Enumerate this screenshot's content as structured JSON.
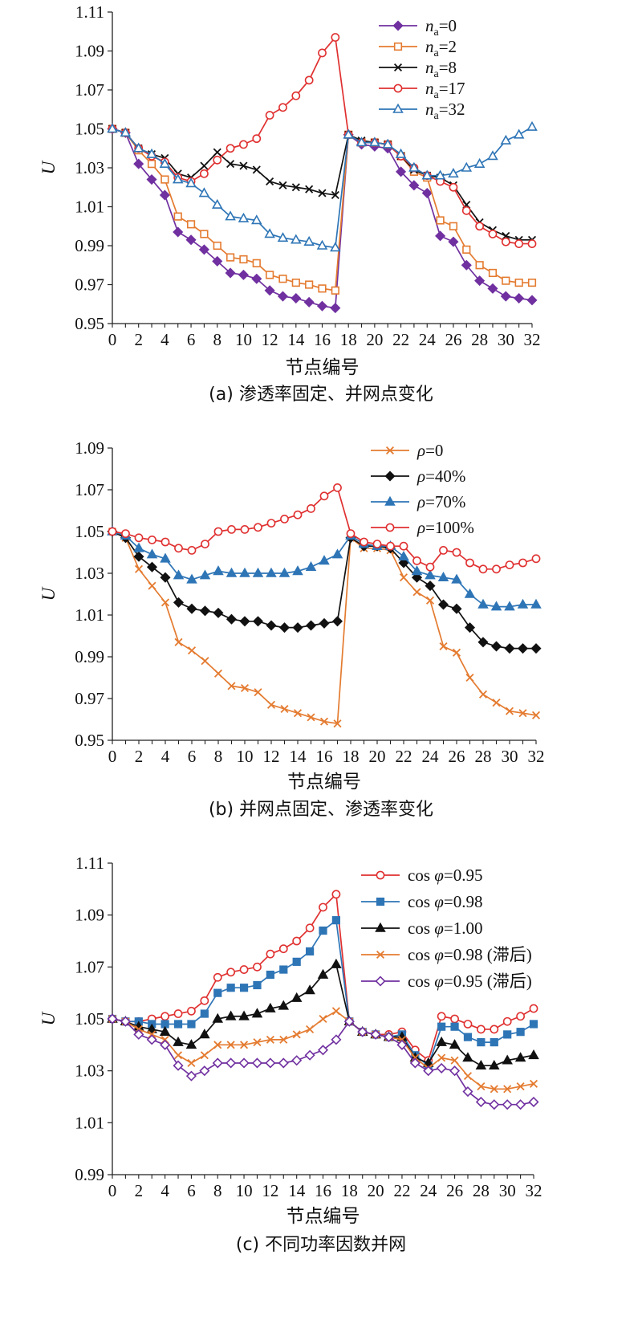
{
  "chart_data": [
    {
      "type": "line",
      "caption": "(a) 渗透率固定、并网点变化",
      "xlabel": "节点编号",
      "ylabel": "U",
      "ylim": [
        0.95,
        1.11
      ],
      "yticks": [
        "0.95",
        "0.97",
        "0.99",
        "1.01",
        "1.03",
        "1.05",
        "1.07",
        "1.09",
        "1.11"
      ],
      "xticks": [
        "0",
        "2",
        "4",
        "6",
        "8",
        "10",
        "12",
        "14",
        "16",
        "18",
        "20",
        "22",
        "24",
        "26",
        "28",
        "30",
        "32"
      ],
      "x": [
        0,
        1,
        2,
        3,
        4,
        5,
        6,
        7,
        8,
        9,
        10,
        11,
        12,
        13,
        14,
        15,
        16,
        17,
        18,
        19,
        20,
        21,
        22,
        23,
        24,
        25,
        26,
        27,
        28,
        29,
        30,
        31,
        32
      ],
      "series": [
        {
          "name_var": "n",
          "name_sub": "a",
          "name_val": "=0",
          "color": "#7030a0",
          "marker": "diamond",
          "filled": true,
          "values": [
            1.05,
            1.048,
            1.032,
            1.024,
            1.016,
            0.997,
            0.993,
            0.988,
            0.982,
            0.976,
            0.975,
            0.973,
            0.967,
            0.964,
            0.963,
            0.961,
            0.959,
            0.958,
            1.047,
            1.042,
            1.041,
            1.04,
            1.028,
            1.021,
            1.017,
            0.995,
            0.992,
            0.98,
            0.972,
            0.968,
            0.964,
            0.963,
            0.962
          ]
        },
        {
          "name_var": "n",
          "name_sub": "a",
          "name_val": "=2",
          "color": "#e47b30",
          "marker": "square",
          "filled": false,
          "values": [
            1.05,
            1.048,
            1.039,
            1.032,
            1.024,
            1.005,
            1.001,
            0.996,
            0.99,
            0.984,
            0.983,
            0.981,
            0.975,
            0.973,
            0.971,
            0.97,
            0.968,
            0.967,
            1.047,
            1.043,
            1.043,
            1.042,
            1.036,
            1.028,
            1.025,
            1.003,
            1.0,
            0.988,
            0.98,
            0.976,
            0.972,
            0.971,
            0.971
          ]
        },
        {
          "name_var": "n",
          "name_sub": "a",
          "name_val": "=8",
          "color": "#111111",
          "marker": "x",
          "filled": false,
          "values": [
            1.05,
            1.048,
            1.04,
            1.037,
            1.035,
            1.027,
            1.025,
            1.031,
            1.038,
            1.032,
            1.031,
            1.029,
            1.023,
            1.021,
            1.02,
            1.019,
            1.017,
            1.016,
            1.047,
            1.044,
            1.043,
            1.042,
            1.036,
            1.029,
            1.026,
            1.025,
            1.021,
            1.011,
            1.002,
            0.998,
            0.995,
            0.993,
            0.993
          ]
        },
        {
          "name_var": "n",
          "name_sub": "a",
          "name_val": "=17",
          "color": "#e03030",
          "marker": "circle",
          "filled": false,
          "values": [
            1.05,
            1.048,
            1.04,
            1.036,
            1.033,
            1.025,
            1.023,
            1.027,
            1.034,
            1.04,
            1.042,
            1.045,
            1.057,
            1.061,
            1.067,
            1.075,
            1.089,
            1.097,
            1.047,
            1.043,
            1.043,
            1.042,
            1.036,
            1.03,
            1.026,
            1.023,
            1.02,
            1.008,
            1.0,
            0.996,
            0.992,
            0.991,
            0.991
          ]
        },
        {
          "name_var": "n",
          "name_sub": "a",
          "name_val": "=32",
          "color": "#2e75b6",
          "marker": "triangle",
          "filled": false,
          "values": [
            1.05,
            1.048,
            1.04,
            1.037,
            1.032,
            1.024,
            1.022,
            1.017,
            1.011,
            1.005,
            1.004,
            1.003,
            0.996,
            0.994,
            0.993,
            0.992,
            0.99,
            0.989,
            1.047,
            1.043,
            1.043,
            1.042,
            1.037,
            1.03,
            1.026,
            1.026,
            1.027,
            1.03,
            1.032,
            1.036,
            1.044,
            1.047,
            1.051
          ]
        }
      ]
    },
    {
      "type": "line",
      "caption": "(b) 并网点固定、渗透率变化",
      "xlabel": "节点编号",
      "ylabel": "U",
      "ylim": [
        0.95,
        1.09
      ],
      "yticks": [
        "0.95",
        "0.97",
        "0.99",
        "1.01",
        "1.03",
        "1.05",
        "1.07",
        "1.09"
      ],
      "xticks": [
        "0",
        "2",
        "4",
        "6",
        "8",
        "10",
        "12",
        "14",
        "16",
        "18",
        "20",
        "22",
        "24",
        "26",
        "28",
        "30",
        "32"
      ],
      "x": [
        0,
        1,
        2,
        3,
        4,
        5,
        6,
        7,
        8,
        9,
        10,
        11,
        12,
        13,
        14,
        15,
        16,
        17,
        18,
        19,
        20,
        21,
        22,
        23,
        24,
        25,
        26,
        27,
        28,
        29,
        30,
        31,
        32
      ],
      "series": [
        {
          "name_var": "ρ",
          "name_val": "=0",
          "color": "#e47b30",
          "marker": "x",
          "filled": false,
          "values": [
            1.05,
            1.047,
            1.032,
            1.024,
            1.016,
            0.997,
            0.993,
            0.988,
            0.982,
            0.976,
            0.975,
            0.973,
            0.967,
            0.965,
            0.963,
            0.961,
            0.959,
            0.958,
            1.047,
            1.042,
            1.042,
            1.041,
            1.028,
            1.021,
            1.017,
            0.995,
            0.992,
            0.98,
            0.972,
            0.968,
            0.964,
            0.963,
            0.962
          ]
        },
        {
          "name_var": "ρ",
          "name_val": "=40%",
          "color": "#111111",
          "marker": "diamond",
          "filled": true,
          "values": [
            1.05,
            1.047,
            1.038,
            1.033,
            1.028,
            1.016,
            1.013,
            1.012,
            1.011,
            1.008,
            1.007,
            1.007,
            1.005,
            1.004,
            1.004,
            1.005,
            1.006,
            1.007,
            1.047,
            1.043,
            1.043,
            1.042,
            1.035,
            1.028,
            1.024,
            1.015,
            1.013,
            1.004,
            0.997,
            0.995,
            0.994,
            0.994,
            0.994
          ]
        },
        {
          "name_var": "ρ",
          "name_val": "=70%",
          "color": "#2e75b6",
          "marker": "triangle",
          "filled": true,
          "values": [
            1.05,
            1.048,
            1.042,
            1.039,
            1.037,
            1.029,
            1.027,
            1.029,
            1.031,
            1.03,
            1.03,
            1.03,
            1.03,
            1.03,
            1.031,
            1.033,
            1.036,
            1.039,
            1.048,
            1.044,
            1.043,
            1.043,
            1.038,
            1.031,
            1.029,
            1.028,
            1.027,
            1.02,
            1.015,
            1.014,
            1.014,
            1.015,
            1.015
          ]
        },
        {
          "name_var": "ρ",
          "name_val": "=100%",
          "color": "#e03030",
          "marker": "circle",
          "filled": false,
          "values": [
            1.05,
            1.049,
            1.047,
            1.046,
            1.045,
            1.042,
            1.041,
            1.044,
            1.05,
            1.051,
            1.051,
            1.052,
            1.054,
            1.056,
            1.058,
            1.061,
            1.067,
            1.071,
            1.049,
            1.045,
            1.044,
            1.043,
            1.043,
            1.036,
            1.033,
            1.041,
            1.04,
            1.035,
            1.032,
            1.032,
            1.034,
            1.035,
            1.037
          ]
        }
      ]
    },
    {
      "type": "line",
      "caption": "(c) 不同功率因数并网",
      "xlabel": "节点编号",
      "ylabel": "U",
      "ylim": [
        0.99,
        1.11
      ],
      "yticks": [
        "0.99",
        "1.01",
        "1.03",
        "1.05",
        "1.07",
        "1.09",
        "1.11"
      ],
      "xticks": [
        "0",
        "2",
        "4",
        "6",
        "8",
        "10",
        "12",
        "14",
        "16",
        "18",
        "20",
        "22",
        "24",
        "26",
        "28",
        "30",
        "32"
      ],
      "x": [
        0,
        1,
        2,
        3,
        4,
        5,
        6,
        7,
        8,
        9,
        10,
        11,
        12,
        13,
        14,
        15,
        16,
        17,
        18,
        19,
        20,
        21,
        22,
        23,
        24,
        25,
        26,
        27,
        28,
        29,
        30,
        31,
        32
      ],
      "series": [
        {
          "name_pre": "cos ",
          "name_var": "φ",
          "name_val": "=0.95",
          "color": "#e03030",
          "marker": "circle",
          "filled": false,
          "values": [
            1.05,
            1.049,
            1.049,
            1.05,
            1.051,
            1.052,
            1.053,
            1.057,
            1.066,
            1.068,
            1.069,
            1.07,
            1.075,
            1.077,
            1.08,
            1.085,
            1.093,
            1.098,
            1.049,
            1.045,
            1.044,
            1.044,
            1.045,
            1.038,
            1.034,
            1.051,
            1.05,
            1.048,
            1.046,
            1.046,
            1.049,
            1.051,
            1.054
          ]
        },
        {
          "name_pre": "cos ",
          "name_var": "φ",
          "name_val": "=0.98",
          "color": "#2e75b6",
          "marker": "square",
          "filled": true,
          "values": [
            1.05,
            1.049,
            1.049,
            1.048,
            1.048,
            1.048,
            1.048,
            1.052,
            1.06,
            1.062,
            1.062,
            1.063,
            1.067,
            1.069,
            1.072,
            1.076,
            1.084,
            1.088,
            1.049,
            1.045,
            1.044,
            1.043,
            1.044,
            1.036,
            1.032,
            1.047,
            1.047,
            1.043,
            1.041,
            1.041,
            1.044,
            1.045,
            1.048
          ]
        },
        {
          "name_pre": "cos ",
          "name_var": "φ",
          "name_val": "=1.00",
          "color": "#111111",
          "marker": "triangle",
          "filled": true,
          "values": [
            1.05,
            1.049,
            1.047,
            1.046,
            1.045,
            1.041,
            1.04,
            1.044,
            1.05,
            1.051,
            1.051,
            1.052,
            1.054,
            1.055,
            1.058,
            1.061,
            1.067,
            1.071,
            1.049,
            1.045,
            1.044,
            1.043,
            1.043,
            1.035,
            1.033,
            1.041,
            1.04,
            1.035,
            1.032,
            1.032,
            1.034,
            1.035,
            1.036
          ]
        },
        {
          "name_pre": "cos ",
          "name_var": "φ",
          "name_val": "=0.98 (滞后)",
          "color": "#e47b30",
          "marker": "x",
          "filled": false,
          "values": [
            1.05,
            1.049,
            1.046,
            1.044,
            1.042,
            1.036,
            1.033,
            1.036,
            1.04,
            1.04,
            1.04,
            1.041,
            1.042,
            1.042,
            1.044,
            1.046,
            1.05,
            1.053,
            1.049,
            1.045,
            1.044,
            1.043,
            1.042,
            1.035,
            1.031,
            1.035,
            1.034,
            1.028,
            1.024,
            1.023,
            1.023,
            1.024,
            1.025
          ]
        },
        {
          "name_pre": "cos ",
          "name_var": "φ",
          "name_val": "=0.95 (滞后)",
          "color": "#7030a0",
          "marker": "diamond",
          "filled": false,
          "values": [
            1.05,
            1.049,
            1.044,
            1.042,
            1.04,
            1.032,
            1.028,
            1.03,
            1.033,
            1.033,
            1.033,
            1.033,
            1.033,
            1.033,
            1.034,
            1.036,
            1.038,
            1.042,
            1.049,
            1.045,
            1.044,
            1.043,
            1.04,
            1.033,
            1.03,
            1.031,
            1.03,
            1.022,
            1.018,
            1.017,
            1.017,
            1.017,
            1.018
          ]
        }
      ]
    }
  ]
}
